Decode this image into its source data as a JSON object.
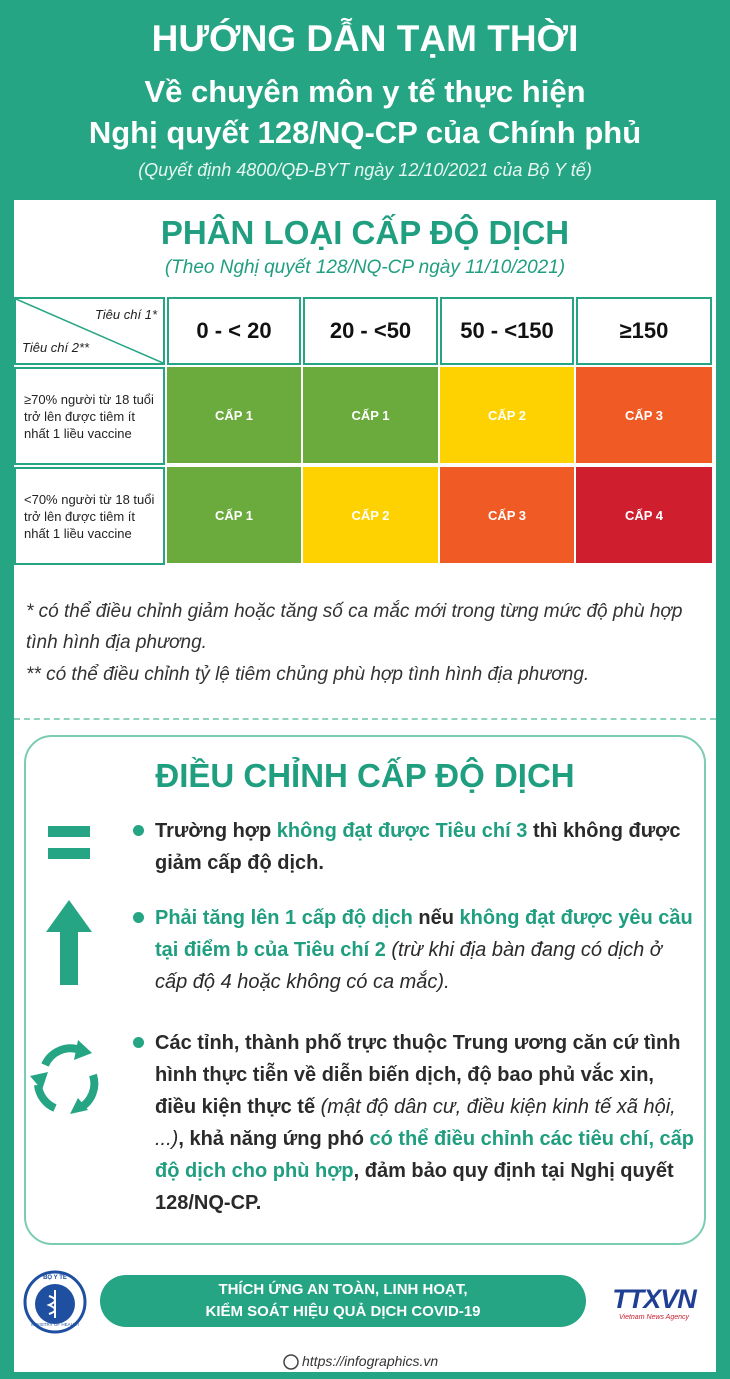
{
  "header": {
    "title": "HƯỚNG DẪN TẠM THỜI",
    "subtitle_lines": [
      "Về chuyên môn y tế thực hiện",
      "Nghị quyết 128/NQ-CP của Chính phủ"
    ],
    "source": "(Quyết định 4800/QĐ-BYT ngày 12/10/2021 của Bộ Y tế)"
  },
  "classification": {
    "title": "PHÂN LOẠI CẤP ĐỘ DỊCH",
    "source": "(Theo Nghị quyết 128/NQ-CP ngày 11/10/2021)",
    "table": {
      "corner_top": "Tiêu chí 1*",
      "corner_bottom": "Tiêu chí 2**",
      "columns": [
        "0 - < 20",
        "20 - <50",
        "50 - <150",
        "≥150"
      ],
      "rows": [
        {
          "label": "≥70% người từ 18 tuổi trở lên được tiêm ít nhất 1 liều vaccine",
          "cells": [
            {
              "label": "CẤP 1",
              "color": "#6bab3e"
            },
            {
              "label": "CẤP 1",
              "color": "#6bab3e"
            },
            {
              "label": "CẤP 2",
              "color": "#fdd200"
            },
            {
              "label": "CẤP 3",
              "color": "#f05a24"
            }
          ]
        },
        {
          "label": "<70% người từ 18 tuổi trở lên được tiêm ít nhất 1 liều vaccine",
          "cells": [
            {
              "label": "CẤP 1",
              "color": "#6bab3e"
            },
            {
              "label": "CẤP 2",
              "color": "#fdd200"
            },
            {
              "label": "CẤP 3",
              "color": "#f05a24"
            },
            {
              "label": "CẤP 4",
              "color": "#cf1f2f"
            }
          ]
        }
      ]
    },
    "notes": [
      "* có thể điều chỉnh giảm hoặc tăng số ca mắc mới trong từng mức độ phù hợp tình hình địa phương.",
      "** có thể điều chỉnh tỷ lệ tiêm chủng phù hợp tình hình địa phương."
    ]
  },
  "adjustment": {
    "title": "ĐIỀU CHỈNH CẤP ĐỘ DỊCH",
    "items": [
      {
        "icon": "equals",
        "segments": [
          {
            "text": "Trường hợp ",
            "style": "bold"
          },
          {
            "text": "không đạt được Tiêu chí 3",
            "style": "highlight"
          },
          {
            "text": " thì không được giảm cấp độ dịch.",
            "style": "bold"
          }
        ]
      },
      {
        "icon": "arrow",
        "segments": [
          {
            "text": "Phải tăng lên 1 cấp độ dịch",
            "style": "highlight"
          },
          {
            "text": " nếu ",
            "style": "bold"
          },
          {
            "text": "không đạt được yêu cầu tại điểm b của Tiêu chí 2",
            "style": "highlight"
          },
          {
            "text": " (trừ khi địa bàn đang có dịch ở cấp độ 4 hoặc không có ca mắc).",
            "style": "italic"
          }
        ]
      },
      {
        "icon": "cycle",
        "segments": [
          {
            "text": "Các tỉnh, thành phố trực thuộc Trung ương căn cứ tình hình thực tiễn về diễn biến dịch, độ bao phủ vắc xin, điều kiện thực tế ",
            "style": "bold"
          },
          {
            "text": "(mật độ dân cư, điều kiện kinh tế xã hội, ...)",
            "style": "italic"
          },
          {
            "text": ", khả năng ứng phó ",
            "style": "bold"
          },
          {
            "text": "có thể điều chỉnh các tiêu chí, cấp độ dịch cho phù hợp",
            "style": "highlight"
          },
          {
            "text": ", đảm bảo quy định tại Nghị quyết 128/NQ-CP.",
            "style": "bold"
          }
        ]
      }
    ]
  },
  "footer": {
    "logo_top": "BỘ Y TẾ",
    "logo_bottom": "MINISTRY OF HEALTH",
    "slogan_lines": [
      "THÍCH ỨNG AN TOÀN, LINH HOẠT,",
      "KIỂM SOÁT HIỆU QUẢ DỊCH COVID-19"
    ],
    "agency": "TTXVN",
    "agency_sub": "Vietnam News Agency",
    "url": "https://infographics.vn"
  }
}
